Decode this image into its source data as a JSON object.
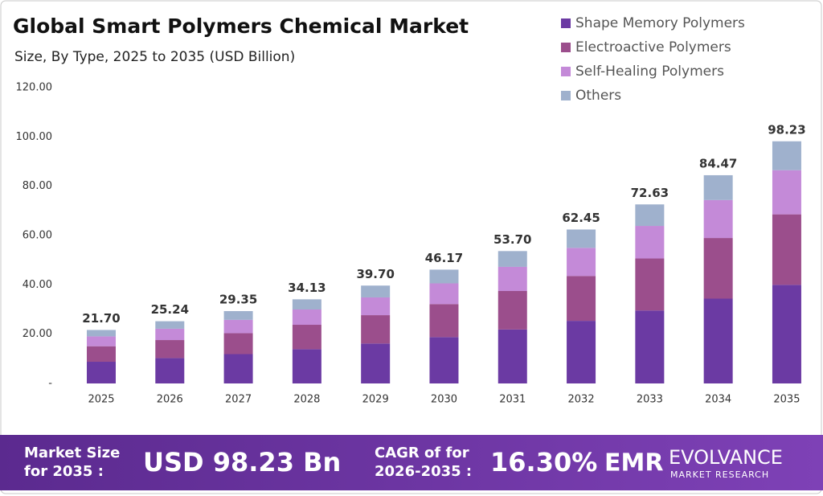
{
  "chart_data": {
    "type": "stacked-bar",
    "title": "Global Smart Polymers Chemical Market",
    "subtitle": "Size, By Type, 2025 to 2035 (USD Billion)",
    "categories": [
      "2025",
      "2026",
      "2027",
      "2028",
      "2029",
      "2030",
      "2031",
      "2032",
      "2033",
      "2034",
      "2035"
    ],
    "series": [
      {
        "name": "Shape Memory Polymers",
        "color": "#6b3aa3",
        "values": [
          8.8,
          10.3,
          11.9,
          13.9,
          16.2,
          18.8,
          21.9,
          25.4,
          29.6,
          34.4,
          40.0
        ]
      },
      {
        "name": "Electroactive Polymers",
        "color": "#9b4e8c",
        "values": [
          6.3,
          7.3,
          8.5,
          9.9,
          11.5,
          13.4,
          15.6,
          18.2,
          21.1,
          24.6,
          28.6
        ]
      },
      {
        "name": "Self-Healing Polymers",
        "color": "#c48ad8",
        "values": [
          4.0,
          4.6,
          5.4,
          6.2,
          7.2,
          8.4,
          9.8,
          11.4,
          13.2,
          15.4,
          17.9
        ]
      },
      {
        "name": "Others",
        "color": "#9fb1cd",
        "values": [
          2.6,
          3.04,
          3.55,
          4.13,
          4.8,
          5.57,
          6.4,
          7.45,
          8.73,
          10.07,
          11.73
        ]
      }
    ],
    "totals": {
      "values": [
        21.7,
        25.24,
        29.35,
        34.13,
        39.7,
        46.17,
        53.7,
        62.45,
        72.63,
        84.47,
        98.23
      ],
      "value_labels": [
        "21.70",
        "25.24",
        "29.35",
        "34.13",
        "39.70",
        "46.17",
        "53.70",
        "62.45",
        "72.63",
        "84.47",
        "98.23"
      ]
    },
    "ylim": [
      0,
      120
    ],
    "yticks": [
      {
        "value": 0,
        "label": "-"
      },
      {
        "value": 20,
        "label": "20.00"
      },
      {
        "value": 40,
        "label": "40.00"
      },
      {
        "value": 60,
        "label": "60.00"
      },
      {
        "value": 80,
        "label": "80.00"
      },
      {
        "value": 100,
        "label": "100.00"
      },
      {
        "value": 120,
        "label": "120.00"
      }
    ],
    "grid": false,
    "legend": "top-right"
  },
  "footer": {
    "market_size_label": [
      "Market Size",
      "for 2035 :"
    ],
    "market_size": "USD 98.23 Bn",
    "cagr_label": [
      "CAGR of for",
      "2026-2035 :"
    ],
    "cagr": "16.30%",
    "logo_mark": "EMR",
    "logo_name": "EVOLVANCE",
    "logo_tagline": "MARKET RESEARCH"
  }
}
